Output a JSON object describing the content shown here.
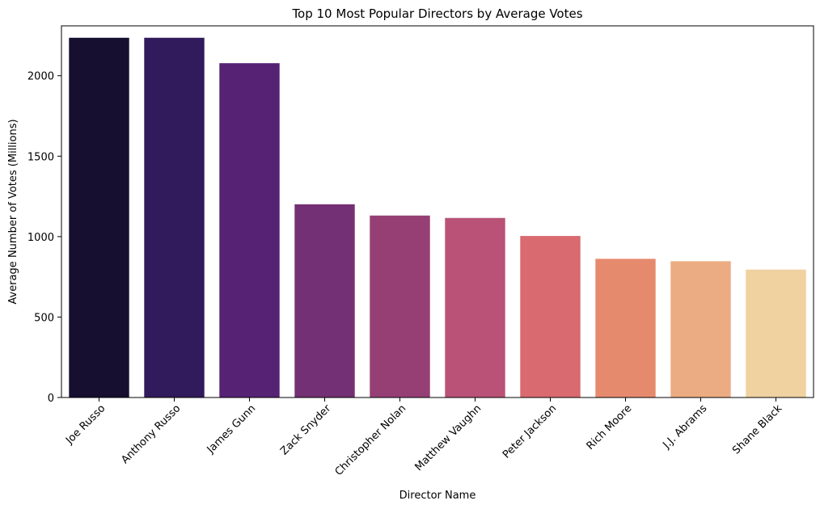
{
  "chart_data": {
    "type": "bar",
    "title": "Top 10 Most Popular Directors by Average Votes",
    "xlabel": "Director Name",
    "ylabel": "Average Number of Votes (Millions)",
    "categories": [
      "Joe Russo",
      "Anthony Russo",
      "James Gunn",
      "Zack Snyder",
      "Christopher Nolan",
      "Matthew Vaughn",
      "Peter Jackson",
      "Rich Moore",
      "J.J. Abrams",
      "Shane Black"
    ],
    "values": [
      2236,
      2236,
      2078,
      1201,
      1131,
      1116,
      1004,
      862,
      847,
      795
    ],
    "colors": [
      "#160f30",
      "#321b5c",
      "#562274",
      "#743075",
      "#953f75",
      "#b95276",
      "#d86a70",
      "#e68a6e",
      "#ecac83",
      "#f0d1a0"
    ],
    "ylim": [
      0,
      2310
    ],
    "yticks": [
      0,
      500,
      1000,
      1500,
      2000
    ],
    "grid": false
  }
}
